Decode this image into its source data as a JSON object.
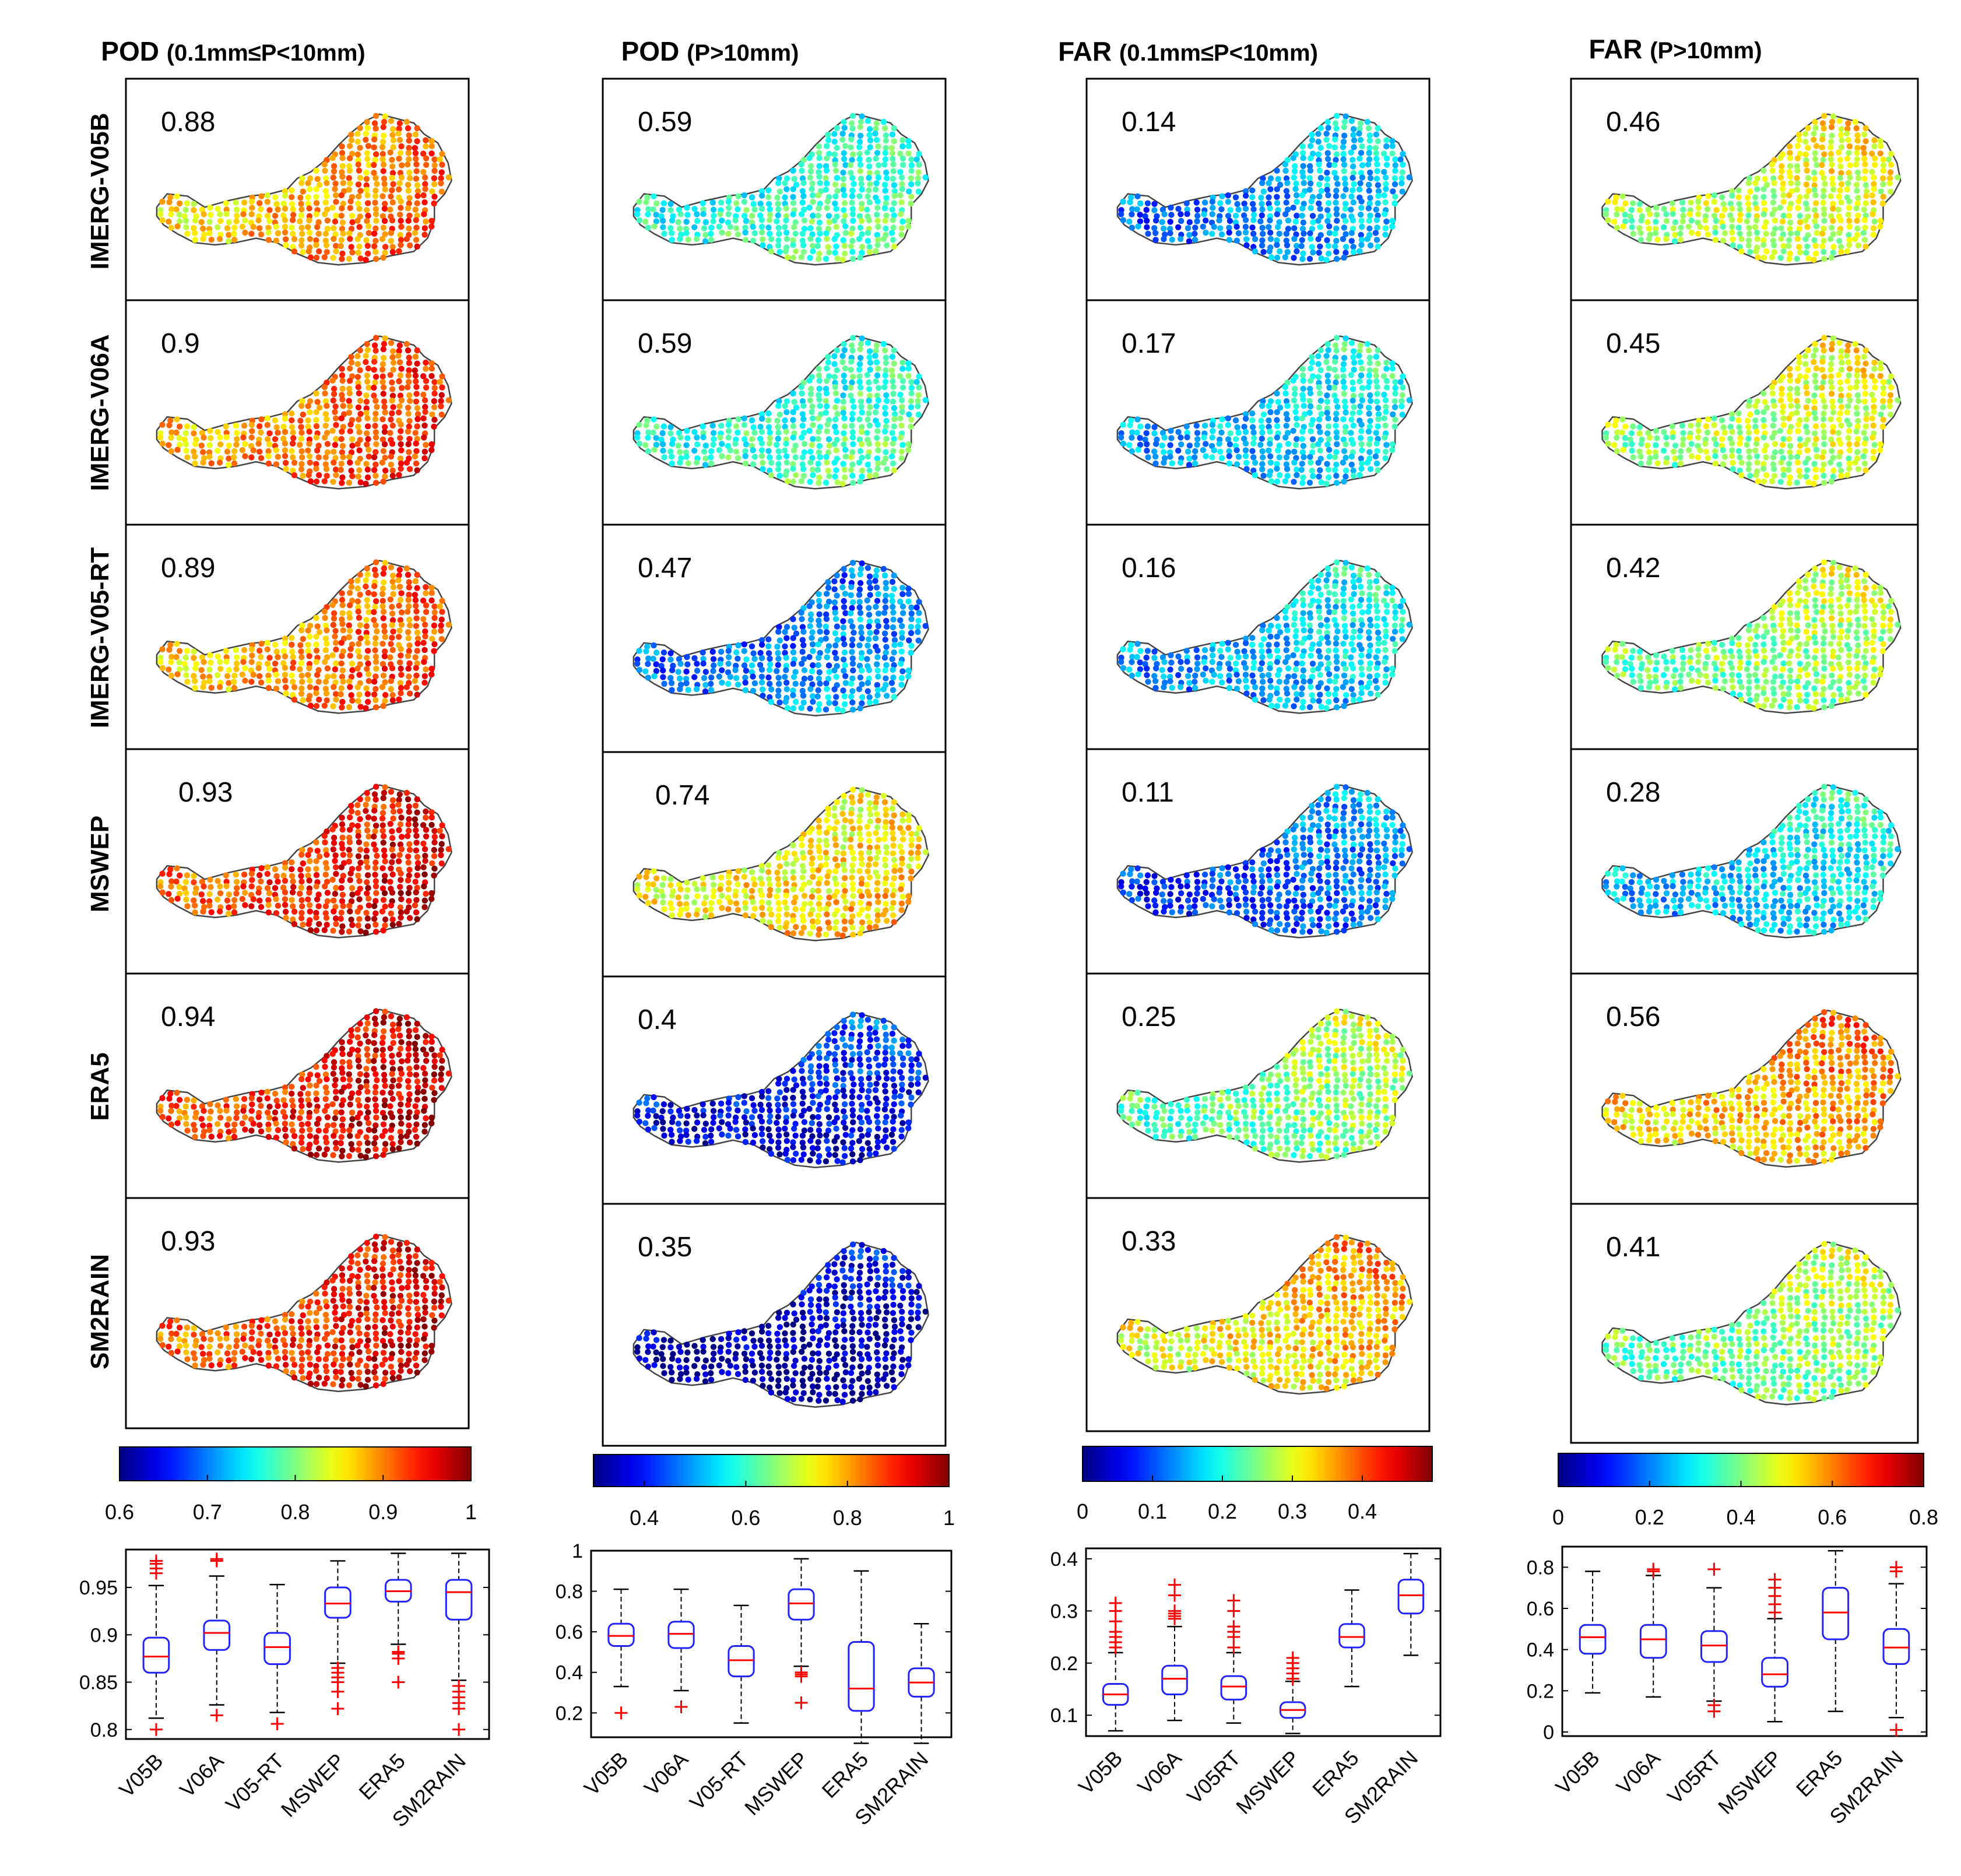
{
  "figure": {
    "columns": [
      {
        "title": "POD",
        "subtitle": "(0.1mm≤P<10mm)",
        "values": [
          "0.88",
          "0.9",
          "0.89",
          "0.93",
          "0.94",
          "0.93"
        ]
      },
      {
        "title": "POD",
        "subtitle": "(P>10mm)",
        "values": [
          "0.59",
          "0.59",
          "0.47",
          "0.74",
          "0.4",
          "0.35"
        ]
      },
      {
        "title": "FAR",
        "subtitle": "(0.1mm≤P<10mm)",
        "values": [
          "0.14",
          "0.17",
          "0.16",
          "0.11",
          "0.25",
          "0.33"
        ]
      },
      {
        "title": "FAR",
        "subtitle": "(P>10mm)",
        "values": [
          "0.46",
          "0.45",
          "0.42",
          "0.28",
          "0.56",
          "0.41"
        ]
      }
    ],
    "rows": [
      "IMERG-V05B",
      "IMERG-V06A",
      "IMERG-V05-RT",
      "MSWEP",
      "ERA5",
      "SM2RAIN"
    ],
    "colormap": "jet"
  },
  "chart_data": [
    {
      "type": "colorbar",
      "panel": "POD (0.1mm≤P<10mm)",
      "range": [
        0.6,
        1.0
      ],
      "ticks": [
        {
          "v": 0.6,
          "label": "0.6"
        },
        {
          "v": 0.7,
          "label": "0.7"
        },
        {
          "v": 0.8,
          "label": "0.8"
        },
        {
          "v": 0.9,
          "label": "0.9"
        },
        {
          "v": 1.0,
          "label": "1"
        }
      ]
    },
    {
      "type": "colorbar",
      "panel": "POD (P>10mm)",
      "range": [
        0.3,
        1.0
      ],
      "ticks": [
        {
          "v": 0.4,
          "label": "0.4"
        },
        {
          "v": 0.6,
          "label": "0.6"
        },
        {
          "v": 0.8,
          "label": "0.8"
        },
        {
          "v": 1.0,
          "label": "1"
        }
      ]
    },
    {
      "type": "colorbar",
      "panel": "FAR (0.1mm≤P<10mm)",
      "range": [
        0,
        0.5
      ],
      "ticks": [
        {
          "v": 0,
          "label": "0"
        },
        {
          "v": 0.1,
          "label": "0.1"
        },
        {
          "v": 0.2,
          "label": "0.2"
        },
        {
          "v": 0.3,
          "label": "0.3"
        },
        {
          "v": 0.4,
          "label": "0.4"
        }
      ]
    },
    {
      "type": "colorbar",
      "panel": "FAR (P>10mm)",
      "range": [
        0,
        0.8
      ],
      "ticks": [
        {
          "v": 0,
          "label": "0"
        },
        {
          "v": 0.2,
          "label": "0.2"
        },
        {
          "v": 0.4,
          "label": "0.4"
        },
        {
          "v": 0.6,
          "label": "0.6"
        },
        {
          "v": 0.8,
          "label": "0.8"
        }
      ]
    },
    {
      "type": "box",
      "panel": "POD (0.1mm≤P<10mm)",
      "ylim": [
        0.79,
        0.99
      ],
      "yticks": [
        {
          "v": 0.8,
          "label": "0.8"
        },
        {
          "v": 0.85,
          "label": "0.85"
        },
        {
          "v": 0.9,
          "label": "0.9"
        },
        {
          "v": 0.95,
          "label": "0.95"
        }
      ],
      "categories": [
        "V05B",
        "V06A",
        "V05-RT",
        "MSWEP",
        "ERA5",
        "SM2RAIN"
      ],
      "boxes": [
        {
          "median": 0.877,
          "q1": 0.86,
          "q3": 0.897,
          "lo": 0.812,
          "hi": 0.952,
          "outliers": [
            0.8,
            0.965,
            0.97,
            0.975,
            0.978
          ]
        },
        {
          "median": 0.902,
          "q1": 0.884,
          "q3": 0.915,
          "lo": 0.826,
          "hi": 0.962,
          "outliers": [
            0.815,
            0.978,
            0.98
          ]
        },
        {
          "median": 0.887,
          "q1": 0.869,
          "q3": 0.902,
          "lo": 0.818,
          "hi": 0.953,
          "outliers": [
            0.806
          ]
        },
        {
          "median": 0.933,
          "q1": 0.918,
          "q3": 0.95,
          "lo": 0.87,
          "hi": 0.978,
          "outliers": [
            0.822,
            0.84,
            0.85,
            0.855,
            0.86,
            0.865
          ]
        },
        {
          "median": 0.946,
          "q1": 0.935,
          "q3": 0.958,
          "lo": 0.89,
          "hi": 0.986,
          "outliers": [
            0.85,
            0.875,
            0.88,
            0.882
          ]
        },
        {
          "median": 0.945,
          "q1": 0.916,
          "q3": 0.958,
          "lo": 0.852,
          "hi": 0.986,
          "outliers": [
            0.8,
            0.822,
            0.828,
            0.834,
            0.84,
            0.846
          ]
        }
      ]
    },
    {
      "type": "box",
      "panel": "POD (P>10mm)",
      "ylim": [
        0.08,
        1.0
      ],
      "yticks": [
        {
          "v": 0.2,
          "label": "0.2"
        },
        {
          "v": 0.4,
          "label": "0.4"
        },
        {
          "v": 0.6,
          "label": "0.6"
        },
        {
          "v": 0.8,
          "label": "0.8"
        },
        {
          "v": 1.0,
          "label": "1"
        }
      ],
      "categories": [
        "V05B",
        "V06A",
        "V05-RT",
        "MSWEP",
        "ERA5",
        "SM2RAIN"
      ],
      "boxes": [
        {
          "median": 0.58,
          "q1": 0.53,
          "q3": 0.64,
          "lo": 0.33,
          "hi": 0.81,
          "outliers": [
            0.2
          ]
        },
        {
          "median": 0.59,
          "q1": 0.52,
          "q3": 0.65,
          "lo": 0.31,
          "hi": 0.81,
          "outliers": [
            0.23
          ]
        },
        {
          "median": 0.46,
          "q1": 0.38,
          "q3": 0.53,
          "lo": 0.15,
          "hi": 0.73,
          "outliers": []
        },
        {
          "median": 0.74,
          "q1": 0.66,
          "q3": 0.81,
          "lo": 0.43,
          "hi": 0.96,
          "outliers": [
            0.25,
            0.38,
            0.39,
            0.4
          ]
        },
        {
          "median": 0.32,
          "q1": 0.21,
          "q3": 0.55,
          "lo": 0.05,
          "hi": 0.9,
          "outliers": []
        },
        {
          "median": 0.35,
          "q1": 0.28,
          "q3": 0.42,
          "lo": 0.05,
          "hi": 0.64,
          "outliers": []
        }
      ]
    },
    {
      "type": "box",
      "panel": "FAR (0.1mm≤P<10mm)",
      "ylim": [
        0.06,
        0.42
      ],
      "yticks": [
        {
          "v": 0.1,
          "label": "0.1"
        },
        {
          "v": 0.2,
          "label": "0.2"
        },
        {
          "v": 0.3,
          "label": "0.3"
        },
        {
          "v": 0.4,
          "label": "0.4"
        }
      ],
      "categories": [
        "V05B",
        "V06A",
        "V05RT",
        "MSWEP",
        "ERA5",
        "SM2RAIN"
      ],
      "boxes": [
        {
          "median": 0.14,
          "q1": 0.12,
          "q3": 0.16,
          "lo": 0.07,
          "hi": 0.22,
          "outliers": [
            0.23,
            0.24,
            0.25,
            0.26,
            0.28,
            0.3,
            0.315
          ]
        },
        {
          "median": 0.17,
          "q1": 0.14,
          "q3": 0.195,
          "lo": 0.09,
          "hi": 0.27,
          "outliers": [
            0.285,
            0.29,
            0.295,
            0.3,
            0.33,
            0.35
          ]
        },
        {
          "median": 0.155,
          "q1": 0.13,
          "q3": 0.175,
          "lo": 0.085,
          "hi": 0.22,
          "outliers": [
            0.23,
            0.25,
            0.26,
            0.27,
            0.3,
            0.32
          ]
        },
        {
          "median": 0.11,
          "q1": 0.095,
          "q3": 0.125,
          "lo": 0.065,
          "hi": 0.165,
          "outliers": [
            0.17,
            0.18,
            0.19,
            0.2,
            0.21
          ]
        },
        {
          "median": 0.25,
          "q1": 0.23,
          "q3": 0.275,
          "lo": 0.155,
          "hi": 0.34,
          "outliers": []
        },
        {
          "median": 0.33,
          "q1": 0.295,
          "q3": 0.36,
          "lo": 0.215,
          "hi": 0.41,
          "outliers": []
        }
      ]
    },
    {
      "type": "box",
      "panel": "FAR (P>10mm)",
      "ylim": [
        -0.02,
        0.9
      ],
      "yticks": [
        {
          "v": 0,
          "label": "0"
        },
        {
          "v": 0.2,
          "label": "0.2"
        },
        {
          "v": 0.4,
          "label": "0.4"
        },
        {
          "v": 0.6,
          "label": "0.6"
        },
        {
          "v": 0.8,
          "label": "0.8"
        }
      ],
      "categories": [
        "V05B",
        "V06A",
        "V05RT",
        "MSWEP",
        "ERA5",
        "SM2RAIN"
      ],
      "boxes": [
        {
          "median": 0.46,
          "q1": 0.38,
          "q3": 0.52,
          "lo": 0.19,
          "hi": 0.78,
          "outliers": []
        },
        {
          "median": 0.45,
          "q1": 0.36,
          "q3": 0.52,
          "lo": 0.17,
          "hi": 0.76,
          "outliers": [
            0.78,
            0.79
          ]
        },
        {
          "median": 0.42,
          "q1": 0.34,
          "q3": 0.49,
          "lo": 0.15,
          "hi": 0.7,
          "outliers": [
            0.1,
            0.13,
            0.79
          ]
        },
        {
          "median": 0.28,
          "q1": 0.22,
          "q3": 0.36,
          "lo": 0.05,
          "hi": 0.55,
          "outliers": [
            0.58,
            0.62,
            0.66,
            0.7,
            0.74
          ]
        },
        {
          "median": 0.58,
          "q1": 0.45,
          "q3": 0.7,
          "lo": 0.1,
          "hi": 0.88,
          "outliers": []
        },
        {
          "median": 0.41,
          "q1": 0.33,
          "q3": 0.5,
          "lo": 0.07,
          "hi": 0.72,
          "outliers": [
            0.01,
            0.78,
            0.8
          ]
        }
      ]
    }
  ]
}
